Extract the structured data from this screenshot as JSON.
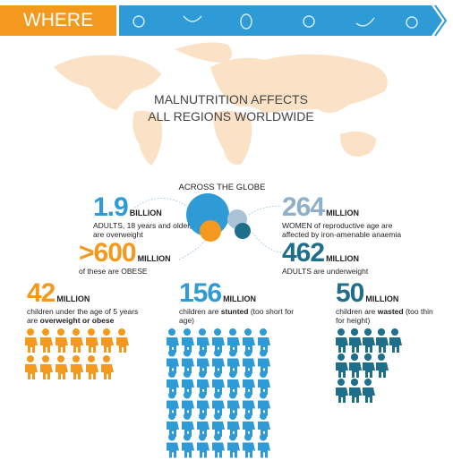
{
  "header": {
    "title": "WHERE"
  },
  "map": {
    "title": [
      "MALNUTRITION AFFECTS",
      "ALL REGIONS WORLDWIDE"
    ]
  },
  "globe": {
    "heading": "ACROSS THE GLOBE",
    "stats": [
      {
        "number": "1.9",
        "unit": "BILLION",
        "color": "#2e9bd6",
        "parts": [
          {
            "text": "ADULTS, 18 years and older, are overweight",
            "bold": false
          }
        ]
      },
      {
        "number": ">600",
        "unit": "MILLION",
        "color": "#f39a1e",
        "parts": [
          {
            "text": "of these are OBESE",
            "bold": false
          }
        ]
      },
      {
        "number": "264",
        "unit": "MILLION",
        "color": "#8fb0c8",
        "parts": [
          {
            "text": "WOMEN of reproductive age are affected by iron-amenable anaemia",
            "bold": false
          }
        ]
      },
      {
        "number": "462",
        "unit": "MILLION",
        "color": "#1f6f8b",
        "parts": [
          {
            "text": "ADULTS are underweight",
            "bold": false
          }
        ]
      }
    ]
  },
  "children": [
    {
      "number": "42",
      "unit": "MILLION",
      "color": "#f39a1e",
      "parts": [
        {
          "text": "children under the age of 5 years are ",
          "bold": false
        },
        {
          "text": "overweight or obese",
          "bold": true
        }
      ]
    },
    {
      "number": "156",
      "unit": "MILLION",
      "color": "#2e9bd6",
      "parts": [
        {
          "text": "children are ",
          "bold": false
        },
        {
          "text": "stunted",
          "bold": true
        },
        {
          "text": " (too short for age)",
          "bold": false
        }
      ]
    },
    {
      "number": "50",
      "unit": "MILLION",
      "color": "#1f6f8b",
      "parts": [
        {
          "text": "children are ",
          "bold": false
        },
        {
          "text": "wasted",
          "bold": true
        },
        {
          "text": " (too thin for height)",
          "bold": false
        }
      ]
    }
  ]
}
